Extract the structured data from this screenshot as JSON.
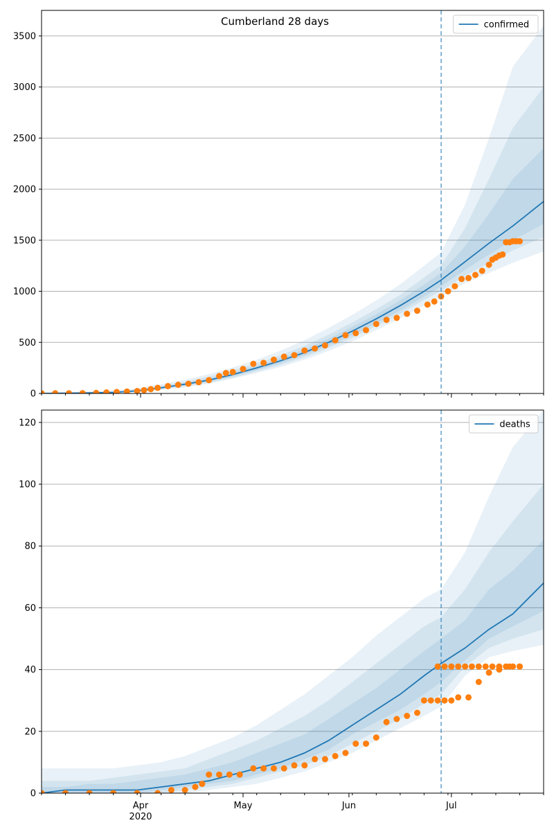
{
  "figure_title": "Cumberland 28 days",
  "x_axis": {
    "tick_labels": [
      {
        "date": "2020-04-01",
        "label": "Apr",
        "sublabel": "2020"
      },
      {
        "date": "2020-05-01",
        "label": "May",
        "sublabel": ""
      },
      {
        "date": "2020-06-01",
        "label": "Jun",
        "sublabel": ""
      },
      {
        "date": "2020-07-01",
        "label": "Jul",
        "sublabel": ""
      }
    ],
    "range": [
      "2020-03-03",
      "2020-07-28"
    ]
  },
  "forecast_start_date": "2020-06-28",
  "colors": {
    "model_line": "#1f77b4",
    "observed_points": "#ff7f0e",
    "band": "#1f77b4",
    "forecast_line": "#1f77b4",
    "grid": "#b0b0b0"
  },
  "chart_data": [
    {
      "type": "line",
      "panel": "top",
      "legend": {
        "label": "confirmed",
        "position": "upper-right"
      },
      "ylim": [
        0,
        3750
      ],
      "yticks": [
        0,
        500,
        1000,
        1500,
        2000,
        2500,
        3000,
        3500
      ],
      "grid": "horizontal",
      "model": {
        "x": [
          "2020-03-03",
          "2020-03-10",
          "2020-03-17",
          "2020-03-24",
          "2020-03-31",
          "2020-04-07",
          "2020-04-14",
          "2020-04-21",
          "2020-04-28",
          "2020-05-05",
          "2020-05-12",
          "2020-05-19",
          "2020-05-26",
          "2020-06-02",
          "2020-06-09",
          "2020-06-16",
          "2020-06-23",
          "2020-06-28",
          "2020-07-05",
          "2020-07-12",
          "2020-07-19",
          "2020-07-28"
        ],
        "median": [
          0,
          2,
          5,
          10,
          25,
          55,
          90,
          130,
          185,
          250,
          320,
          400,
          500,
          610,
          730,
          860,
          1000,
          1110,
          1290,
          1470,
          1640,
          1880
        ],
        "bands": [
          {
            "lower": [
              0,
              0,
              0,
              5,
              15,
              35,
              60,
              95,
              145,
              200,
              260,
              330,
              415,
              510,
              620,
              735,
              860,
              945,
              1080,
              1180,
              1280,
              1390
            ],
            "upper": [
              10,
              15,
              20,
              30,
              50,
              90,
              135,
              190,
              255,
              330,
              420,
              520,
              640,
              770,
              910,
              1070,
              1250,
              1380,
              1850,
              2500,
              3200,
              3600
            ]
          },
          {
            "lower": [
              0,
              0,
              0,
              7,
              18,
              40,
              70,
              105,
              155,
              215,
              280,
              355,
              445,
              545,
              660,
              780,
              915,
              1005,
              1150,
              1280,
              1400,
              1530
            ],
            "upper": [
              6,
              10,
              14,
              22,
              40,
              75,
              115,
              165,
              225,
              295,
              375,
              465,
              575,
              695,
              825,
              965,
              1135,
              1255,
              1620,
              2100,
              2600,
              3000
            ]
          },
          {
            "lower": [
              0,
              0,
              0,
              8,
              21,
              47,
              78,
              116,
              168,
              229,
              297,
              374,
              468,
              571,
              687,
              811,
              948,
              1048,
              1210,
              1360,
              1500,
              1660
            ],
            "upper": [
              3,
              6,
              10,
              15,
              31,
              64,
              104,
              146,
              204,
              271,
              346,
              428,
              535,
              652,
              776,
              912,
              1065,
              1180,
              1440,
              1760,
              2100,
              2400
            ]
          }
        ]
      },
      "observed": {
        "x": [
          "2020-03-03",
          "2020-03-07",
          "2020-03-11",
          "2020-03-15",
          "2020-03-19",
          "2020-03-22",
          "2020-03-25",
          "2020-03-28",
          "2020-03-31",
          "2020-04-02",
          "2020-04-04",
          "2020-04-06",
          "2020-04-09",
          "2020-04-12",
          "2020-04-15",
          "2020-04-18",
          "2020-04-21",
          "2020-04-24",
          "2020-04-26",
          "2020-04-28",
          "2020-05-01",
          "2020-05-04",
          "2020-05-07",
          "2020-05-10",
          "2020-05-13",
          "2020-05-16",
          "2020-05-19",
          "2020-05-22",
          "2020-05-25",
          "2020-05-28",
          "2020-05-31",
          "2020-06-03",
          "2020-06-06",
          "2020-06-09",
          "2020-06-12",
          "2020-06-15",
          "2020-06-18",
          "2020-06-21",
          "2020-06-24",
          "2020-06-26",
          "2020-06-28",
          "2020-06-30",
          "2020-07-02",
          "2020-07-04",
          "2020-07-06",
          "2020-07-08",
          "2020-07-10",
          "2020-07-12"
        ],
        "values": [
          2,
          2,
          2,
          3,
          5,
          10,
          14,
          18,
          24,
          32,
          42,
          55,
          72,
          85,
          95,
          110,
          130,
          170,
          200,
          210,
          240,
          290,
          300,
          330,
          360,
          375,
          420,
          440,
          470,
          520,
          570,
          590,
          620,
          680,
          720,
          740,
          780,
          810,
          870,
          900,
          950,
          1000,
          1050,
          1120,
          1130,
          1160,
          1200,
          1260
        ]
      },
      "observed_extra": {
        "x": [
          "2020-07-13",
          "2020-07-14",
          "2020-07-15",
          "2020-07-16",
          "2020-07-17",
          "2020-07-18",
          "2020-07-19",
          "2020-07-20",
          "2020-07-21"
        ],
        "values": [
          1310,
          1330,
          1350,
          1360,
          1480,
          1480,
          1490,
          1490,
          1490
        ]
      }
    },
    {
      "type": "line",
      "panel": "bottom",
      "legend": {
        "label": "deaths",
        "position": "upper-right"
      },
      "ylim": [
        0,
        124
      ],
      "yticks": [
        0,
        20,
        40,
        60,
        80,
        100,
        120
      ],
      "grid": "horizontal",
      "model": {
        "x": [
          "2020-03-03",
          "2020-03-10",
          "2020-03-17",
          "2020-03-24",
          "2020-03-31",
          "2020-04-07",
          "2020-04-14",
          "2020-04-21",
          "2020-04-28",
          "2020-05-05",
          "2020-05-12",
          "2020-05-19",
          "2020-05-26",
          "2020-06-02",
          "2020-06-09",
          "2020-06-16",
          "2020-06-23",
          "2020-06-28",
          "2020-07-05",
          "2020-07-12",
          "2020-07-19",
          "2020-07-28"
        ],
        "median": [
          0,
          1,
          1,
          1,
          1,
          2,
          3,
          4,
          6,
          8,
          10,
          13,
          17,
          22,
          27,
          32,
          38,
          42,
          47,
          53,
          58,
          68
        ],
        "bands": [
          {
            "lower": [
              0,
              0,
              0,
              0,
              0,
              0,
              0,
              1,
              2,
              3,
              5,
              7,
              10,
              13,
              17,
              21,
              25,
              28,
              38,
              44,
              46,
              48
            ],
            "upper": [
              8,
              8,
              8,
              8,
              9,
              10,
              12,
              15,
              18,
              22,
              27,
              32,
              38,
              44,
              51,
              57,
              63,
              66,
              78,
              96,
              112,
              124
            ]
          },
          {
            "lower": [
              0,
              0,
              0,
              0,
              0,
              0,
              1,
              2,
              3,
              5,
              7,
              9,
              12,
              16,
              20,
              24,
              29,
              32,
              41,
              47,
              50,
              53
            ],
            "upper": [
              4,
              4,
              4,
              5,
              6,
              7,
              8,
              11,
              14,
              17,
              21,
              25,
              30,
              36,
              42,
              48,
              54,
              57,
              66,
              78,
              88,
              100
            ]
          },
          {
            "lower": [
              0,
              0,
              0,
              0,
              0,
              1,
              2,
              3,
              4,
              6,
              8,
              11,
              14,
              19,
              23,
              27,
              32,
              36,
              43,
              50,
              54,
              59
            ],
            "upper": [
              2,
              2,
              3,
              3,
              4,
              5,
              6,
              8,
              10,
              13,
              16,
              19,
              24,
              29,
              34,
              40,
              46,
              50,
              56,
              66,
              72,
              82
            ]
          }
        ]
      },
      "observed": {
        "x": [
          "2020-03-03",
          "2020-03-10",
          "2020-03-17",
          "2020-03-24",
          "2020-03-31",
          "2020-04-06",
          "2020-04-10",
          "2020-04-14",
          "2020-04-17",
          "2020-04-19",
          "2020-04-21",
          "2020-04-24",
          "2020-04-27",
          "2020-04-30",
          "2020-05-04",
          "2020-05-07",
          "2020-05-10",
          "2020-05-13",
          "2020-05-16",
          "2020-05-19",
          "2020-05-22",
          "2020-05-25",
          "2020-05-28",
          "2020-05-31",
          "2020-06-03",
          "2020-06-06",
          "2020-06-09",
          "2020-06-12",
          "2020-06-15",
          "2020-06-18",
          "2020-06-21",
          "2020-06-23",
          "2020-06-25",
          "2020-06-27",
          "2020-06-29",
          "2020-07-01",
          "2020-07-03",
          "2020-07-06",
          "2020-07-09",
          "2020-07-12",
          "2020-07-15",
          "2020-07-18",
          "2020-07-21"
        ],
        "values": [
          0,
          0,
          0,
          0,
          0,
          0,
          1,
          1,
          2,
          3,
          6,
          6,
          6,
          6,
          8,
          8,
          8,
          8,
          9,
          9,
          11,
          11,
          12,
          13,
          16,
          16,
          18,
          23,
          24,
          25,
          26,
          30,
          30,
          30,
          30,
          30,
          31,
          31,
          36,
          39,
          40,
          41,
          41
        ]
      },
      "observed_extra": {
        "x": [
          "2020-06-27",
          "2020-06-29",
          "2020-07-01",
          "2020-07-03",
          "2020-07-05",
          "2020-07-07",
          "2020-07-09",
          "2020-07-11",
          "2020-07-13",
          "2020-07-15",
          "2020-07-17",
          "2020-07-19",
          "2020-07-21"
        ],
        "values": [
          41,
          41,
          41,
          41,
          41,
          41,
          41,
          41,
          41,
          41,
          41,
          41,
          41
        ]
      }
    }
  ]
}
